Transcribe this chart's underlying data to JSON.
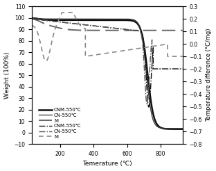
{
  "xlabel": "Temerature (℃)",
  "ylabel_left": "Weight (100%)",
  "ylabel_right": "Temperature difference (°C/mg)",
  "xlim": [
    30,
    930
  ],
  "ylim_left": [
    -10,
    110
  ],
  "ylim_right": [
    -0.8,
    0.3
  ],
  "xticks": [
    200,
    400,
    600,
    800
  ],
  "yticks_left": [
    -10,
    0,
    10,
    20,
    30,
    40,
    50,
    60,
    70,
    80,
    90,
    100,
    110
  ],
  "yticks_right": [
    -0.8,
    -0.7,
    -0.6,
    -0.5,
    -0.4,
    -0.3,
    -0.2,
    -0.1,
    0.0,
    0.1,
    0.2,
    0.3
  ],
  "background_color": "#ffffff"
}
